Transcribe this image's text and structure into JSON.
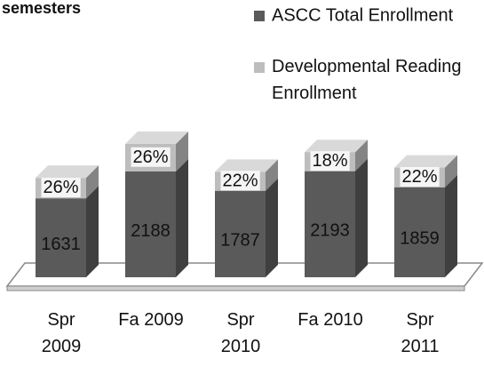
{
  "chart_data": {
    "type": "bar",
    "stacked": true,
    "title": "semesters",
    "categories": [
      "Spr 2009",
      "Fa 2009",
      "Spr 2010",
      "Fa 2010",
      "Spr 2011"
    ],
    "series": [
      {
        "name": "ASCC Total Enrollment",
        "color": "#5a5a5a",
        "values": [
          1631,
          2188,
          1787,
          2193,
          1859
        ]
      },
      {
        "name": "Developmental Reading Enrollment",
        "color": "#bdbdbd",
        "values": [
          26,
          26,
          22,
          18,
          22
        ],
        "value_labels": [
          "26%",
          "26%",
          "22%",
          "18%",
          "22%"
        ]
      }
    ]
  }
}
